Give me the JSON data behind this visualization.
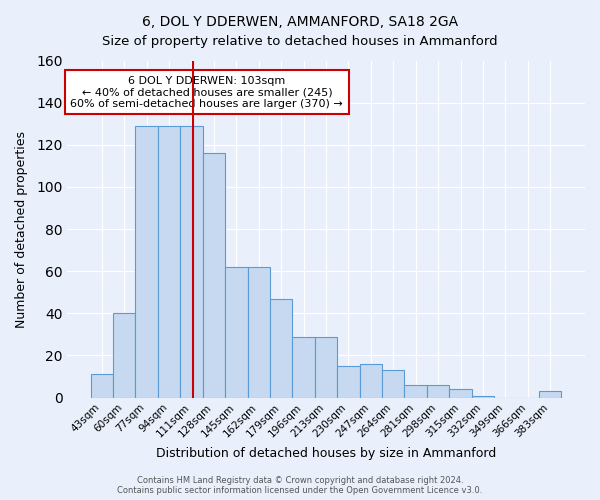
{
  "title": "6, DOL Y DDERWEN, AMMANFORD, SA18 2GA",
  "subtitle": "Size of property relative to detached houses in Ammanford",
  "xlabel": "Distribution of detached houses by size in Ammanford",
  "ylabel": "Number of detached properties",
  "bar_labels": [
    "43sqm",
    "60sqm",
    "77sqm",
    "94sqm",
    "111sqm",
    "128sqm",
    "145sqm",
    "162sqm",
    "179sqm",
    "196sqm",
    "213sqm",
    "230sqm",
    "247sqm",
    "264sqm",
    "281sqm",
    "298sqm",
    "315sqm",
    "332sqm",
    "349sqm",
    "366sqm",
    "383sqm"
  ],
  "bar_values": [
    11,
    40,
    129,
    129,
    129,
    116,
    62,
    62,
    47,
    29,
    29,
    15,
    16,
    13,
    6,
    6,
    4,
    1,
    0,
    0,
    3
  ],
  "bar_color": "#c6d9f0",
  "bar_edge_color": "#5b9bd5",
  "vline_color": "#cc0000",
  "vline_pos": 4.07,
  "ylim": [
    0,
    160
  ],
  "yticks": [
    0,
    20,
    40,
    60,
    80,
    100,
    120,
    140,
    160
  ],
  "annotation_title": "6 DOL Y DDERWEN: 103sqm",
  "annotation_line1": "← 40% of detached houses are smaller (245)",
  "annotation_line2": "60% of semi-detached houses are larger (370) →",
  "annotation_box_color": "#ffffff",
  "annotation_box_edge": "#cc0000",
  "footer_line1": "Contains HM Land Registry data © Crown copyright and database right 2024.",
  "footer_line2": "Contains public sector information licensed under the Open Government Licence v3.0.",
  "background_color": "#eaf0fb",
  "plot_background": "#eaf0fb",
  "grid_color": "#ffffff",
  "title_fontsize": 10,
  "subtitle_fontsize": 9.5,
  "axis_label_fontsize": 9,
  "tick_fontsize": 7.5,
  "annotation_fontsize": 8,
  "footer_fontsize": 6
}
